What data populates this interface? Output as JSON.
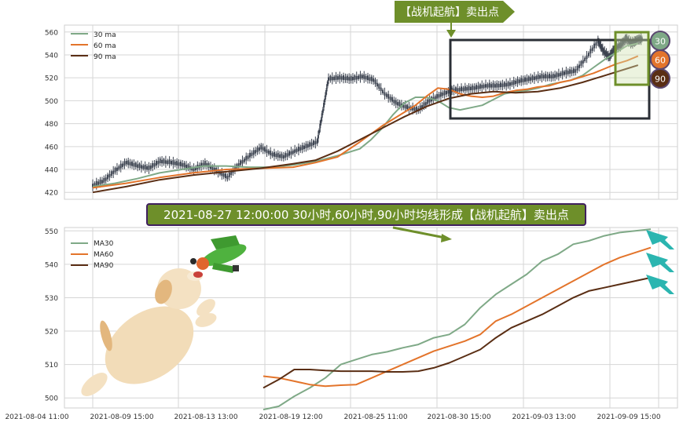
{
  "colors": {
    "ma30": "#7fa987",
    "ma60": "#e3742b",
    "ma90": "#5a2e14",
    "candle": "#3c4350",
    "banner_bg": "#6e8f2a",
    "banner_border": "#3f1f5e",
    "box": "#2b2f36",
    "box_green": "#6e8f2a",
    "grid": "#d6d6d6"
  },
  "top_banner": {
    "text": "【战机起航】卖出点"
  },
  "mid_banner": {
    "text": "2021-08-27 12:00:00 30小时,60小时,90小时均线形成【战机起航】卖出点"
  },
  "badges": [
    {
      "label": "30",
      "color": "#7fa987"
    },
    {
      "label": "60",
      "color": "#e3742b"
    },
    {
      "label": "90",
      "color": "#5a2e14"
    }
  ],
  "chart_data": [
    {
      "type": "line",
      "panel": "top",
      "ylim": [
        414,
        566
      ],
      "yticks": [
        420,
        440,
        460,
        480,
        500,
        520,
        540,
        560
      ],
      "x_range": [
        0,
        100
      ],
      "candle_range": [
        0,
        98
      ],
      "legend": {
        "position": "top-left",
        "entries": [
          "30 ma",
          "60 ma",
          "90 ma"
        ]
      },
      "series": [
        {
          "name": "30 ma",
          "key": "ma30",
          "x": [
            0,
            4,
            8,
            12,
            16,
            20,
            24,
            28,
            32,
            36,
            40,
            44,
            48,
            50,
            52,
            54,
            56,
            58,
            60,
            62,
            64,
            66,
            68,
            70,
            72,
            74,
            76,
            78,
            80,
            82,
            84,
            86,
            88,
            90,
            92,
            94,
            96,
            98
          ],
          "y": [
            425,
            428,
            432,
            437,
            440,
            443,
            443,
            442,
            442,
            444,
            447,
            452,
            458,
            466,
            476,
            488,
            498,
            503,
            503,
            500,
            494,
            492,
            494,
            496,
            501,
            506,
            508,
            509,
            511,
            514,
            516,
            518,
            522,
            529,
            536,
            542,
            548,
            550
          ]
        },
        {
          "name": "60 ma",
          "key": "ma60",
          "x": [
            0,
            6,
            12,
            18,
            24,
            30,
            36,
            40,
            44,
            48,
            52,
            56,
            58,
            60,
            62,
            64,
            66,
            68,
            70,
            72,
            74,
            76,
            78,
            80,
            82,
            84,
            86,
            88,
            90,
            92,
            94,
            96,
            98
          ],
          "y": [
            424,
            428,
            433,
            437,
            440,
            441,
            442,
            446,
            451,
            464,
            478,
            490,
            496,
            504,
            511,
            510,
            506,
            504,
            503,
            504,
            507,
            509,
            510,
            512,
            513,
            516,
            518,
            521,
            524,
            528,
            532,
            535,
            539
          ]
        },
        {
          "name": "90 ma",
          "key": "ma90",
          "x": [
            0,
            6,
            12,
            18,
            24,
            30,
            36,
            40,
            44,
            48,
            52,
            56,
            60,
            64,
            68,
            72,
            76,
            80,
            84,
            88,
            92,
            96,
            98
          ],
          "y": [
            420,
            425,
            431,
            435,
            438,
            441,
            445,
            448,
            456,
            466,
            476,
            486,
            495,
            502,
            506,
            508,
            507,
            508,
            511,
            516,
            522,
            528,
            531
          ]
        },
        {
          "name": "price",
          "key": "candle",
          "x": [
            0,
            2,
            4,
            6,
            8,
            10,
            12,
            14,
            16,
            18,
            20,
            22,
            24,
            26,
            28,
            30,
            32,
            34,
            36,
            38,
            40,
            41,
            42,
            44,
            46,
            48,
            50,
            52,
            54,
            56,
            58,
            60,
            62,
            64,
            66,
            68,
            70,
            72,
            74,
            76,
            78,
            80,
            82,
            84,
            86,
            88,
            90,
            91,
            92,
            93,
            94,
            95,
            96,
            97,
            98
          ],
          "y": [
            426,
            430,
            439,
            446,
            443,
            441,
            447,
            446,
            444,
            440,
            445,
            439,
            433,
            444,
            452,
            459,
            453,
            451,
            456,
            460,
            464,
            491,
            519,
            520,
            519,
            521,
            518,
            506,
            498,
            494,
            492,
            500,
            505,
            509,
            510,
            511,
            513,
            513,
            514,
            517,
            519,
            521,
            521,
            524,
            526,
            538,
            552,
            543,
            538,
            546,
            548,
            554,
            550,
            553,
            554
          ]
        }
      ]
    },
    {
      "type": "line",
      "panel": "bottom",
      "ylim": [
        497,
        551
      ],
      "yticks": [
        500,
        510,
        520,
        530,
        540,
        550
      ],
      "x_range": [
        0,
        100
      ],
      "x_tick_labels": [
        "2021-08-04 11:00",
        "2021-08-09 15:00",
        "2021-08-13 13:00",
        "2021-08-19 12:00",
        "2021-08-25 11:00",
        "2021-08-30 15:00",
        "2021-09-03 13:00",
        "2021-09-09 15:00"
      ],
      "legend": {
        "position": "top-left",
        "entries": [
          "MA30",
          "MA60",
          "MA90"
        ]
      },
      "series": [
        {
          "name": "MA30",
          "key": "ma30",
          "x": [
            0,
            4,
            8,
            12,
            16,
            20,
            24,
            28,
            32,
            36,
            40,
            44,
            48,
            52,
            56,
            60,
            64,
            68,
            72,
            76,
            80,
            84,
            88,
            92,
            96,
            100
          ],
          "y": [
            496.5,
            497.5,
            500.5,
            503,
            506,
            510,
            511.5,
            513,
            513.8,
            515,
            516,
            518,
            519,
            522,
            527,
            531,
            534,
            537,
            541,
            543,
            546,
            547,
            548.5,
            549.5,
            550,
            550.5
          ]
        },
        {
          "name": "MA60",
          "key": "ma60",
          "x": [
            0,
            4,
            8,
            12,
            16,
            20,
            24,
            28,
            32,
            36,
            40,
            44,
            48,
            52,
            56,
            60,
            64,
            68,
            72,
            76,
            80,
            84,
            88,
            92,
            96,
            100
          ],
          "y": [
            506.5,
            506,
            505,
            504,
            503.5,
            503.8,
            504,
            506,
            508,
            510,
            512,
            514,
            515.5,
            517,
            519,
            523,
            525,
            527.5,
            530,
            532.5,
            535,
            537.5,
            540,
            542,
            543.5,
            545
          ]
        },
        {
          "name": "MA90",
          "key": "ma90",
          "x": [
            0,
            4,
            8,
            12,
            16,
            20,
            24,
            28,
            32,
            36,
            40,
            44,
            48,
            52,
            56,
            60,
            64,
            68,
            72,
            76,
            80,
            84,
            88,
            92,
            96,
            100
          ],
          "y": [
            503,
            505.5,
            508.5,
            508.5,
            508.2,
            508,
            508,
            508,
            507.8,
            507.8,
            508,
            509,
            510.5,
            512.5,
            514.5,
            518,
            521,
            523,
            525,
            527.5,
            530,
            532,
            533,
            534,
            535,
            536
          ]
        }
      ]
    }
  ]
}
